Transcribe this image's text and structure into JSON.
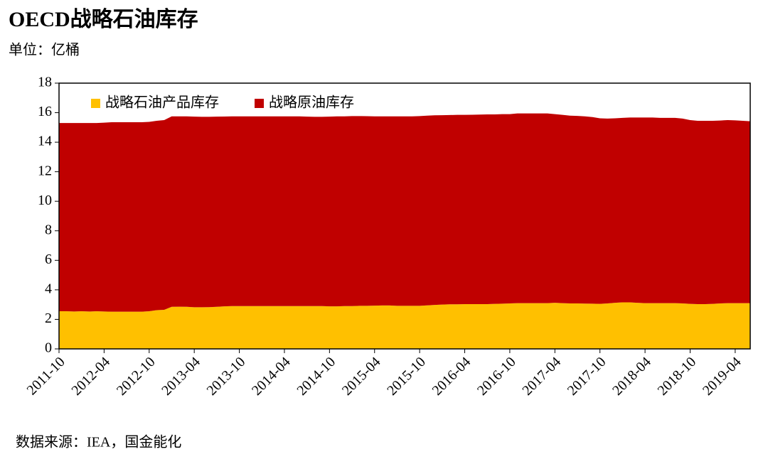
{
  "chart_data": {
    "type": "stacked_area",
    "title": "OECD战略石油库存",
    "subtitle": "单位：亿桶",
    "source": "数据来源：IEA，国金能化",
    "categories": [
      "2011-10",
      null,
      null,
      null,
      null,
      null,
      "2012-04",
      null,
      null,
      null,
      null,
      null,
      "2012-10",
      null,
      null,
      null,
      null,
      null,
      "2013-04",
      null,
      null,
      null,
      null,
      null,
      "2013-10",
      null,
      null,
      null,
      null,
      null,
      "2014-04",
      null,
      null,
      null,
      null,
      null,
      "2014-10",
      null,
      null,
      null,
      null,
      null,
      "2015-04",
      null,
      null,
      null,
      null,
      null,
      "2015-10",
      null,
      null,
      null,
      null,
      null,
      "2016-04",
      null,
      null,
      null,
      null,
      null,
      "2016-10",
      null,
      null,
      null,
      null,
      null,
      "2017-04",
      null,
      null,
      null,
      null,
      null,
      "2017-10",
      null,
      null,
      null,
      null,
      null,
      "2018-04",
      null,
      null,
      null,
      null,
      null,
      "2018-10",
      null,
      null,
      null,
      null,
      null,
      "2019-04",
      null,
      null
    ],
    "series": [
      {
        "name": "战略石油产品库存",
        "color": "#ffc000",
        "values": [
          2.55,
          2.55,
          2.53,
          2.55,
          2.53,
          2.55,
          2.53,
          2.52,
          2.52,
          2.52,
          2.52,
          2.52,
          2.55,
          2.62,
          2.65,
          2.85,
          2.86,
          2.85,
          2.82,
          2.82,
          2.83,
          2.85,
          2.88,
          2.9,
          2.9,
          2.9,
          2.9,
          2.9,
          2.9,
          2.9,
          2.9,
          2.9,
          2.9,
          2.9,
          2.9,
          2.9,
          2.88,
          2.88,
          2.9,
          2.9,
          2.92,
          2.92,
          2.93,
          2.94,
          2.94,
          2.92,
          2.92,
          2.92,
          2.92,
          2.95,
          2.98,
          3.0,
          3.02,
          3.02,
          3.03,
          3.03,
          3.03,
          3.03,
          3.05,
          3.06,
          3.08,
          3.1,
          3.1,
          3.1,
          3.1,
          3.1,
          3.12,
          3.1,
          3.08,
          3.08,
          3.07,
          3.06,
          3.05,
          3.08,
          3.12,
          3.15,
          3.15,
          3.12,
          3.1,
          3.1,
          3.1,
          3.1,
          3.1,
          3.08,
          3.05,
          3.03,
          3.03,
          3.05,
          3.08,
          3.1,
          3.1,
          3.1,
          3.1
        ]
      },
      {
        "name": "战略原油库存",
        "color": "#c00000",
        "values": [
          12.75,
          12.75,
          12.77,
          12.75,
          12.77,
          12.75,
          12.79,
          12.83,
          12.83,
          12.83,
          12.83,
          12.83,
          12.83,
          12.83,
          12.85,
          12.9,
          12.89,
          12.9,
          12.91,
          12.9,
          12.89,
          12.88,
          12.86,
          12.85,
          12.85,
          12.85,
          12.85,
          12.85,
          12.85,
          12.85,
          12.85,
          12.85,
          12.85,
          12.83,
          12.82,
          12.82,
          12.85,
          12.87,
          12.85,
          12.87,
          12.85,
          12.84,
          12.82,
          12.81,
          12.81,
          12.83,
          12.83,
          12.83,
          12.85,
          12.85,
          12.84,
          12.83,
          12.82,
          12.83,
          12.82,
          12.83,
          12.84,
          12.85,
          12.83,
          12.84,
          12.82,
          12.85,
          12.85,
          12.85,
          12.85,
          12.85,
          12.78,
          12.75,
          12.72,
          12.7,
          12.68,
          12.64,
          12.57,
          12.52,
          12.5,
          12.5,
          12.52,
          12.55,
          12.57,
          12.57,
          12.55,
          12.55,
          12.55,
          12.52,
          12.45,
          12.42,
          12.42,
          12.4,
          12.39,
          12.4,
          12.38,
          12.35,
          12.32
        ]
      }
    ],
    "ylim": [
      0,
      18
    ],
    "yticks": [
      0,
      2,
      4,
      6,
      8,
      10,
      12,
      14,
      16,
      18
    ],
    "legend": "top-left"
  }
}
